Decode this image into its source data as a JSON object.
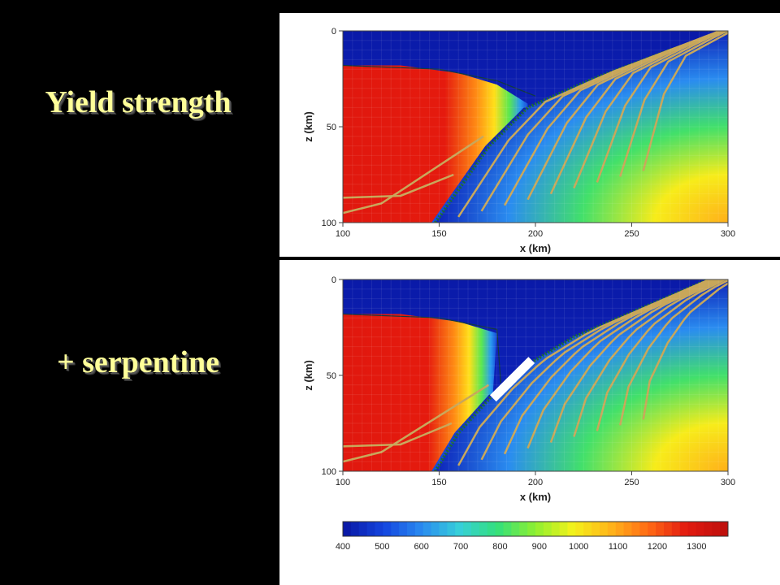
{
  "labels": {
    "top": "Yield strength",
    "bottom": "+ serpentine"
  },
  "chart_data": [
    {
      "type": "heatmap",
      "panel": "top",
      "xlabel": "x (km)",
      "ylabel": "z (km)",
      "xlim": [
        100,
        300
      ],
      "ylim": [
        100,
        0
      ],
      "x_ticks": [
        100,
        150,
        200,
        250,
        300
      ],
      "y_ticks": [
        0,
        50,
        100
      ],
      "slab_top_x_at_z": [
        [
          100,
          148
        ],
        [
          80,
          162
        ],
        [
          60,
          176
        ],
        [
          40,
          196
        ],
        [
          25,
          230
        ],
        [
          10,
          270
        ],
        [
          0,
          300
        ]
      ],
      "hot_wedge_tip": [
        196,
        40
      ],
      "grid": true
    },
    {
      "type": "heatmap",
      "panel": "bottom",
      "xlabel": "x (km)",
      "ylabel": "z (km)",
      "xlim": [
        100,
        300
      ],
      "ylim": [
        100,
        0
      ],
      "x_ticks": [
        100,
        150,
        200,
        250,
        300
      ],
      "y_ticks": [
        0,
        50,
        100
      ],
      "slab_top_x_at_z": [
        [
          100,
          148
        ],
        [
          80,
          160
        ],
        [
          60,
          178
        ],
        [
          45,
          195
        ],
        [
          30,
          220
        ],
        [
          15,
          255
        ],
        [
          0,
          290
        ]
      ],
      "hot_wedge_tip": [
        178,
        60
      ],
      "serpentine_segment": [
        [
          178,
          62
        ],
        [
          198,
          42
        ]
      ],
      "grid": true
    }
  ],
  "colorbar": {
    "ticks": [
      400,
      500,
      600,
      700,
      800,
      900,
      1000,
      1100,
      1200,
      1300
    ],
    "range": [
      400,
      1380
    ],
    "colors": [
      "#0a1aa8",
      "#1447e0",
      "#2a8cf0",
      "#36d0d8",
      "#34e07a",
      "#8ff030",
      "#f4f21a",
      "#ffb41a",
      "#ff6a14",
      "#e21a10",
      "#c0100c"
    ]
  }
}
